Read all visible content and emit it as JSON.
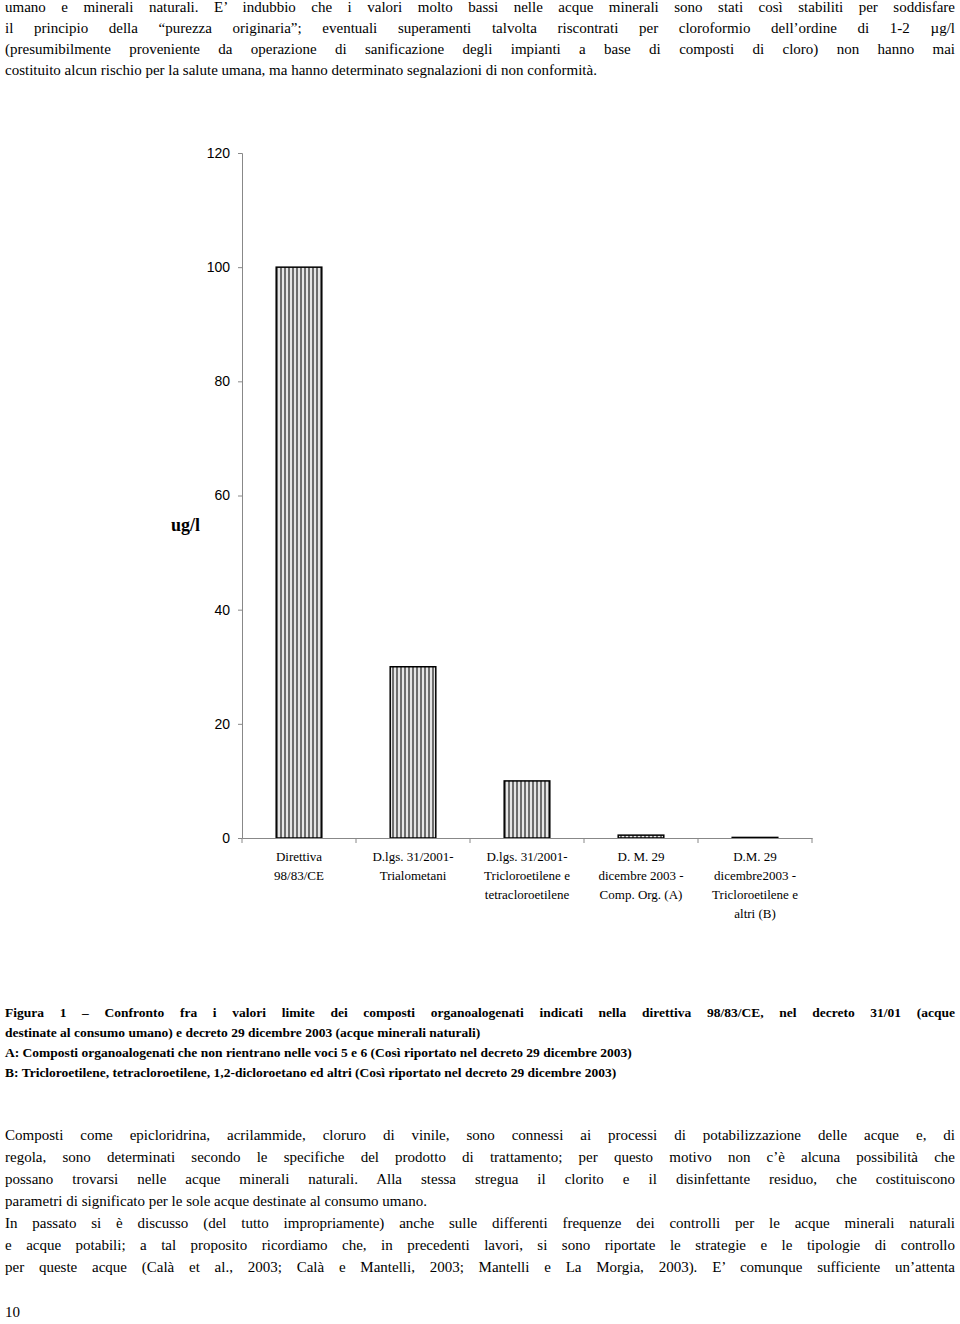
{
  "paragraphs_top": [
    [
      "umano e minerali naturali. E’ indubbio che i valori molto bassi nelle acque minerali sono stati così stabiliti per soddisfare",
      "il principio della “purezza originaria”; eventuali superamenti talvolta riscontrati per cloroformio dell’ordine di 1-2 µg/l",
      "(presumibilmente proveniente da operazione di sanificazione degli impianti a base di composti di cloro) non hanno mai",
      "costituito alcun rischio per la salute umana, ma hanno determinato segnalazioni di non conformità."
    ]
  ],
  "chart_data": {
    "type": "bar",
    "y_label": "ug/l",
    "categories": [
      "Direttiva\n98/83/CE",
      "D.lgs. 31/2001-\nTrialometani",
      "D.lgs. 31/2001-\nTricloroetilene e\ntetracloroetilene",
      "D. M. 29\ndicembre 2003 -\nComp. Org. (A)",
      "D.M. 29\ndicembre2003 -\nTricloroetilene e\naltri (B)"
    ],
    "values": [
      100,
      30,
      10,
      0.5,
      0.1
    ],
    "color": "#6e6e6e",
    "ylim": [
      0,
      120
    ],
    "yticks": [
      0,
      20,
      40,
      60,
      80,
      100,
      120
    ],
    "grid": false
  },
  "caption": [
    "Figura 1 – Confronto fra i valori limite dei composti organoalogenati indicati nella direttiva 98/83/CE, nel decreto 31/01 (acque",
    "destinate al consumo umano) e decreto 29 dicembre 2003 (acque minerali naturali)",
    "A: Composti organoalogenati che non rientrano nelle voci 5 e 6 (Così riportato nel decreto 29 dicembre 2003)",
    "B: Tricloroetilene, tetracloroetilene, 1,2-dicloroetano ed altri (Così riportato nel decreto 29 dicembre 2003)"
  ],
  "paragraphs_bottom": [
    [
      "Composti come epicloridrina, acrilammide, cloruro di vinile, sono connessi ai processi di potabilizzazione delle acque e, di",
      "regola, sono determinati secondo le specifiche del prodotto di trattamento; per questo motivo non c’è alcuna possibilità che",
      "possano trovarsi nelle acque minerali naturali. Alla stessa stregua il clorito e il disinfettante residuo, che costituiscono",
      "parametri di significato per le sole acque destinate al consumo umano."
    ],
    [
      "In passato si è discusso (del tutto impropriamente) anche sulle differenti frequenze dei controlli per le acque minerali naturali",
      "e acque potabili; a tal proposito ricordiamo che, in precedenti lavori, si sono riportate le strategie e le tipologie di controllo",
      "per queste acque (Calà et al., 2003; Calà e Mantelli, 2003; Mantelli e La Morgia, 2003). E’ comunque sufficiente un’attenta"
    ]
  ],
  "page_number": "10"
}
